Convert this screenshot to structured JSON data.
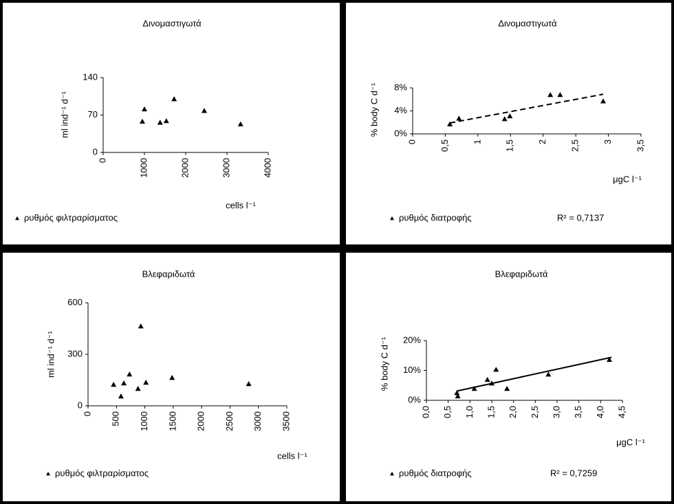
{
  "chart_data": [
    {
      "type": "scatter",
      "title": "Δινομαστιγωτά",
      "y_label": "ml ind⁻¹ d⁻¹",
      "x_label": "cells l⁻¹",
      "series": [
        {
          "name": "ρυθμός φιλτραρίσματος",
          "color": "#000000",
          "x": [
            950,
            1000,
            1380,
            1530,
            1720,
            2450,
            3330
          ],
          "values": [
            58,
            81,
            56,
            59,
            100,
            78,
            53
          ]
        }
      ],
      "xlim": [
        0,
        4000
      ],
      "xticks": [
        0,
        1000,
        2000,
        3000,
        4000
      ],
      "ylim": [
        0,
        140
      ],
      "yticks": [
        0,
        70,
        140
      ],
      "grid": false
    },
    {
      "type": "scatter",
      "title": "Δινομαστιγωτά",
      "y_label": "% body C d⁻¹",
      "x_label": "μgC l⁻¹",
      "series": [
        {
          "name": "ρυθμός διατροφής",
          "color": "#000000",
          "x": [
            0.57,
            0.71,
            1.41,
            1.49,
            2.11,
            2.26,
            2.92
          ],
          "values": [
            1.7,
            2.7,
            2.6,
            3.1,
            6.8,
            6.8,
            5.7
          ]
        }
      ],
      "trendline": {
        "x": [
          0.57,
          2.92
        ],
        "y": [
          1.9,
          6.9
        ],
        "style": "dashed"
      },
      "annotation": "R² = 0,7137",
      "xlim": [
        0,
        3.5
      ],
      "xticks": [
        0,
        {
          "value": 0.5,
          "label": "0,5"
        },
        1,
        {
          "value": 1.5,
          "label": "1,5"
        },
        2,
        {
          "value": 2.5,
          "label": "2,5"
        },
        3,
        {
          "value": 3.5,
          "label": "3,5"
        }
      ],
      "ylim": [
        0,
        8
      ],
      "yticks": [
        {
          "value": 0,
          "label": "0%"
        },
        {
          "value": 4,
          "label": "4%"
        },
        {
          "value": 8,
          "label": "8%"
        }
      ],
      "grid": false
    },
    {
      "type": "scatter",
      "title": "Βλεφαριδωτά",
      "y_label": "ml ind⁻¹ d⁻¹",
      "x_label": "cells l⁻¹",
      "series": [
        {
          "name": "ρυθμός φιλτραρίσματος",
          "color": "#000000",
          "x": [
            450,
            580,
            630,
            730,
            880,
            930,
            1020,
            1480,
            2830
          ],
          "values": [
            124,
            56,
            132,
            184,
            100,
            464,
            136,
            164,
            128
          ]
        }
      ],
      "xlim": [
        0,
        3500
      ],
      "xticks": [
        0,
        500,
        1000,
        1500,
        2000,
        2500,
        3000,
        3500
      ],
      "ylim": [
        0,
        600
      ],
      "yticks": [
        0,
        300,
        600
      ],
      "grid": false
    },
    {
      "type": "scatter",
      "title": "Βλεφαριδωτά",
      "y_label": "% body C d⁻¹",
      "x_label": "μgC l⁻¹",
      "series": [
        {
          "name": "ρυθμός διατροφής",
          "color": "#000000",
          "x": [
            0.7,
            0.72,
            1.1,
            1.4,
            1.5,
            1.6,
            1.85,
            2.8,
            4.2
          ],
          "values": [
            2.5,
            1.4,
            3.9,
            6.9,
            5.7,
            10.3,
            3.9,
            8.7,
            13.6
          ]
        }
      ],
      "trendline": {
        "x": [
          0.7,
          4.25
        ],
        "y": [
          3.1,
          14.4
        ],
        "style": "solid"
      },
      "annotation": "R² = 0,7259",
      "xlim": [
        0,
        4.5
      ],
      "xticks": [
        {
          "value": 0,
          "label": "0,0"
        },
        {
          "value": 0.5,
          "label": "0,5"
        },
        {
          "value": 1,
          "label": "1,0"
        },
        {
          "value": 1.5,
          "label": "1,5"
        },
        {
          "value": 2,
          "label": "2,0"
        },
        {
          "value": 2.5,
          "label": "2,5"
        },
        {
          "value": 3,
          "label": "3,0"
        },
        {
          "value": 3.5,
          "label": "3,5"
        },
        {
          "value": 4,
          "label": "4,0"
        },
        {
          "value": 4.5,
          "label": "4,5"
        }
      ],
      "ylim": [
        0,
        20
      ],
      "yticks": [
        {
          "value": 0,
          "label": "0%"
        },
        {
          "value": 10,
          "label": "10%"
        },
        {
          "value": 20,
          "label": "20%"
        }
      ],
      "grid": false
    }
  ]
}
